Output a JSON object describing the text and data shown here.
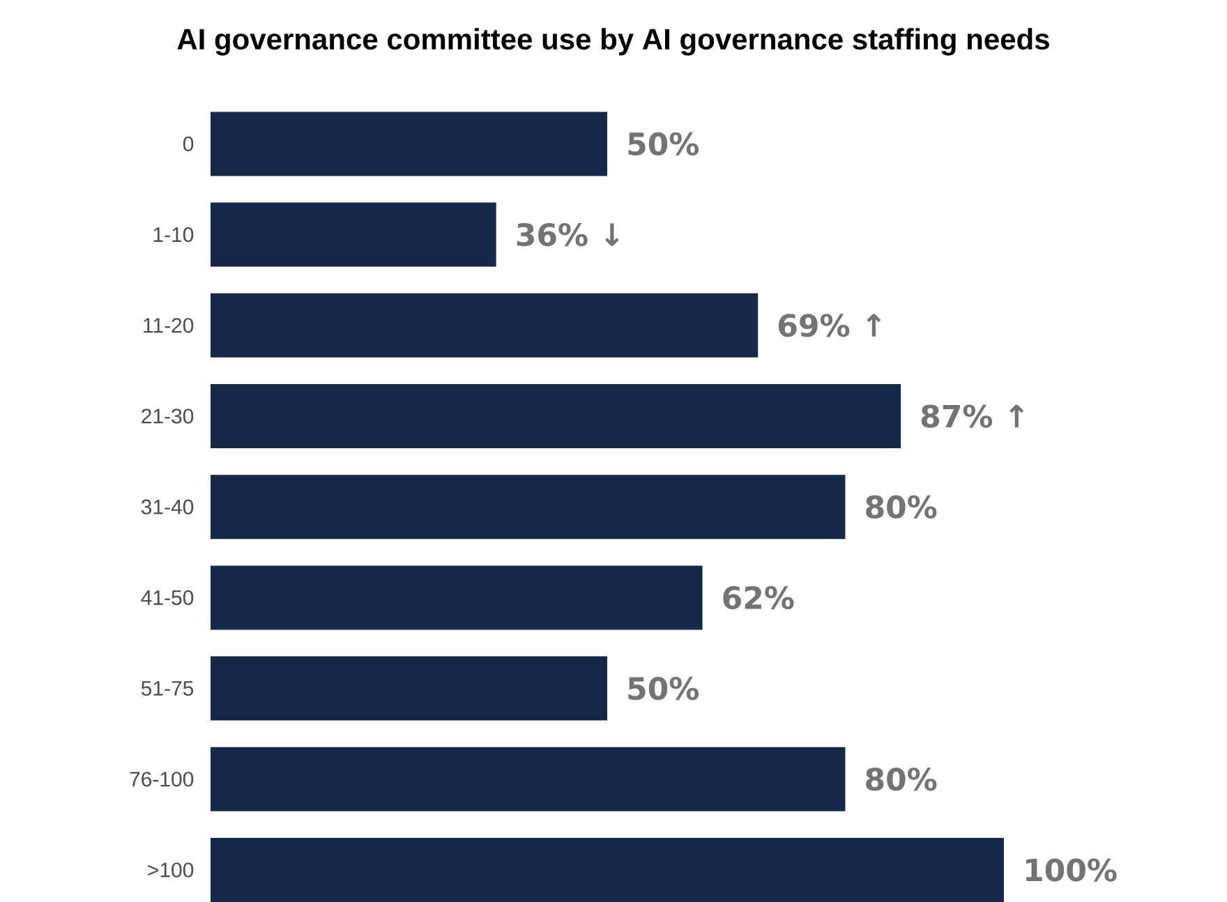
{
  "chart_data": {
    "type": "bar",
    "orientation": "horizontal",
    "title": "AI governance committee use by AI governance staffing needs",
    "categories": [
      "0",
      "1-10",
      "11-20",
      "21-30",
      "31-40",
      "41-50",
      "51-75",
      "76-100",
      ">100"
    ],
    "values": [
      50,
      36,
      69,
      87,
      80,
      62,
      50,
      80,
      100
    ],
    "value_labels": [
      "50%",
      "36% ↓",
      "69% ↑",
      "87% ↑",
      "80%",
      "62%",
      "50%",
      "80%",
      "100%"
    ],
    "color": "#16284a"
  }
}
